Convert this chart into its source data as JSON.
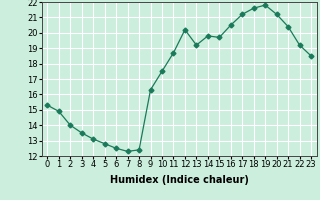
{
  "x": [
    0,
    1,
    2,
    3,
    4,
    5,
    6,
    7,
    8,
    9,
    10,
    11,
    12,
    13,
    14,
    15,
    16,
    17,
    18,
    19,
    20,
    21,
    22,
    23
  ],
  "y": [
    15.3,
    14.9,
    14.0,
    13.5,
    13.1,
    12.8,
    12.5,
    12.3,
    12.4,
    16.3,
    17.5,
    18.7,
    20.2,
    19.2,
    19.8,
    19.7,
    20.5,
    21.2,
    21.6,
    21.8,
    21.2,
    20.4,
    19.2,
    18.5
  ],
  "line_color": "#1a7a5a",
  "marker": "D",
  "marker_size": 2.5,
  "bg_color": "#cceedd",
  "grid_color": "#ffffff",
  "xlabel": "Humidex (Indice chaleur)",
  "xlim": [
    -0.5,
    23.5
  ],
  "ylim": [
    12,
    22
  ],
  "yticks": [
    12,
    13,
    14,
    15,
    16,
    17,
    18,
    19,
    20,
    21,
    22
  ],
  "xticks": [
    0,
    1,
    2,
    3,
    4,
    5,
    6,
    7,
    8,
    9,
    10,
    11,
    12,
    13,
    14,
    15,
    16,
    17,
    18,
    19,
    20,
    21,
    22,
    23
  ],
  "xlabel_fontsize": 7,
  "tick_fontsize": 6
}
